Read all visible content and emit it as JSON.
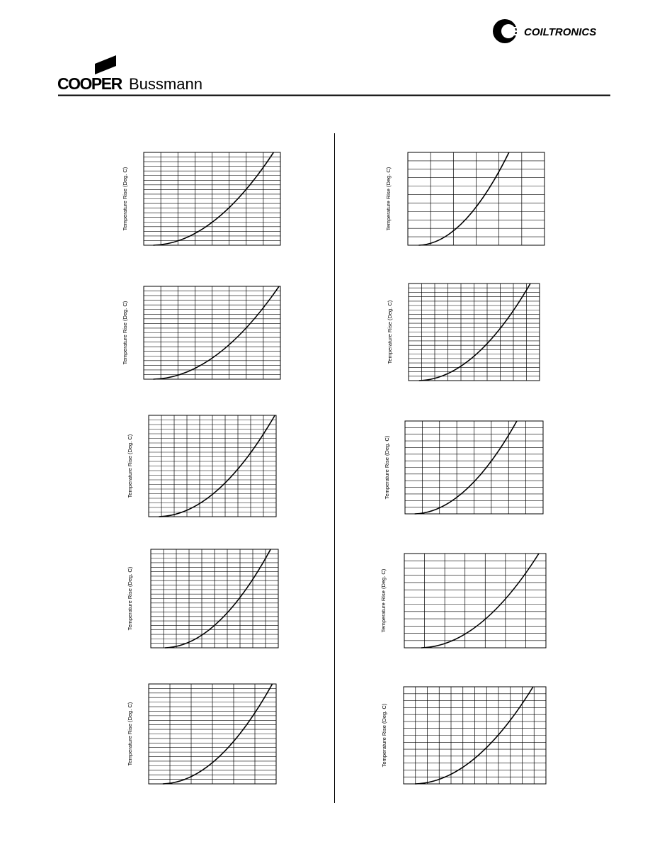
{
  "header": {
    "brand_left": "COOPER",
    "brand_left_sub": "Bussmann",
    "brand_right": "COILTRONICS"
  },
  "charts": [
    {
      "y_label": "Temperature Rise (Deg. C)"
    },
    {
      "y_label": "Temperature Rise (Deg. C)"
    },
    {
      "y_label": "Temperature Rise (Deg. C)"
    },
    {
      "y_label": "Temperature Rise (Deg. C)"
    },
    {
      "y_label": "Temperature Rise (Deg. C)"
    },
    {
      "y_label": "Temperature Rise (Deg. C)"
    },
    {
      "y_label": "Temperature Rise (Deg. C)"
    },
    {
      "y_label": "Temperature Rise (Deg. C)"
    },
    {
      "y_label": "Temperature Rise (Deg. C)"
    },
    {
      "y_label": "Temperature Rise (Deg. C)"
    }
  ]
}
